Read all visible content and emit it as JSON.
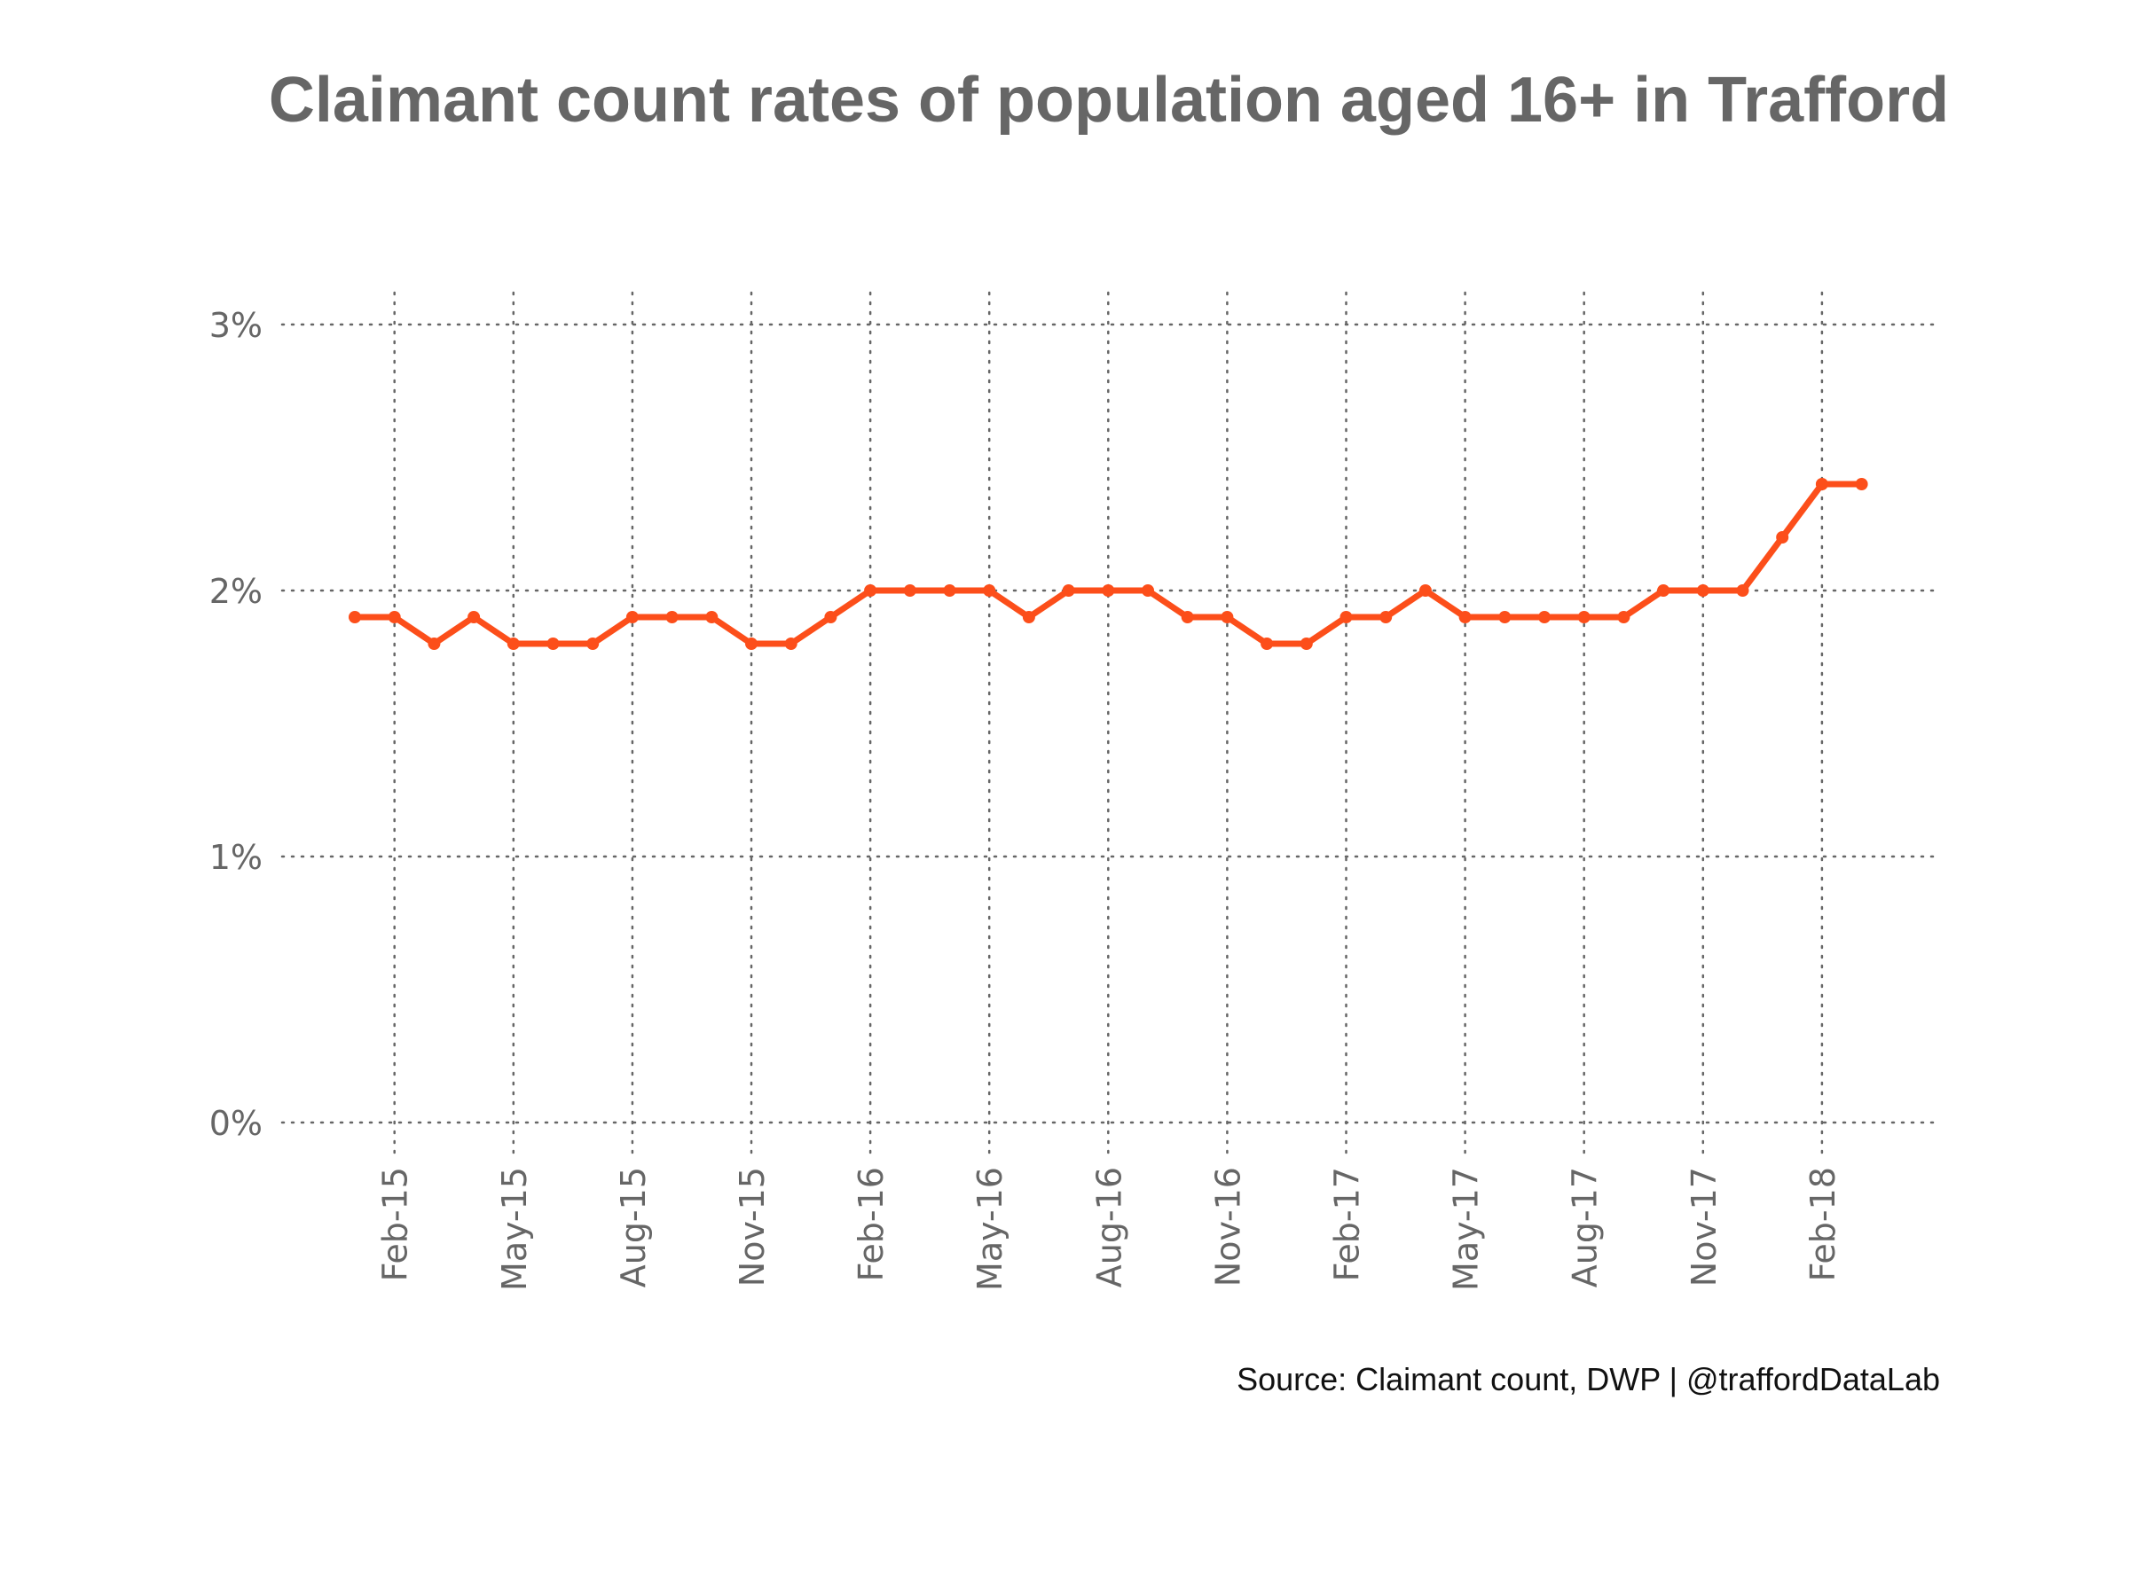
{
  "chart_data": {
    "type": "line",
    "title": "Claimant count rates of population aged 16+ in Trafford",
    "caption": "Source: Claimant count, DWP  |  @traffordDataLab",
    "xlabel": "",
    "ylabel": "",
    "y_axis": {
      "min": 0,
      "max": 3,
      "ticks": [
        0,
        1,
        2,
        3
      ],
      "tick_labels": [
        "0%",
        "1%",
        "2%",
        "3%"
      ]
    },
    "x_axis": {
      "start": "2015-01",
      "end": "2018-03",
      "ticks": [
        "2015-02",
        "2015-05",
        "2015-08",
        "2015-11",
        "2016-02",
        "2016-05",
        "2016-08",
        "2016-11",
        "2017-02",
        "2017-05",
        "2017-08",
        "2017-11",
        "2018-02"
      ],
      "tick_labels": [
        "Feb-15",
        "May-15",
        "Aug-15",
        "Nov-15",
        "Feb-16",
        "May-16",
        "Aug-16",
        "Nov-16",
        "Feb-17",
        "May-17",
        "Aug-17",
        "Nov-17",
        "Feb-18"
      ]
    },
    "grid": true,
    "legend": "none",
    "series": [
      {
        "color": "#fc4e1a",
        "x": [
          "2015-01",
          "2015-02",
          "2015-03",
          "2015-04",
          "2015-05",
          "2015-06",
          "2015-07",
          "2015-08",
          "2015-09",
          "2015-10",
          "2015-11",
          "2015-12",
          "2016-01",
          "2016-02",
          "2016-03",
          "2016-04",
          "2016-05",
          "2016-06",
          "2016-07",
          "2016-08",
          "2016-09",
          "2016-10",
          "2016-11",
          "2016-12",
          "2017-01",
          "2017-02",
          "2017-03",
          "2017-04",
          "2017-05",
          "2017-06",
          "2017-07",
          "2017-08",
          "2017-09",
          "2017-10",
          "2017-11",
          "2017-12",
          "2018-01",
          "2018-02",
          "2018-03"
        ],
        "values": [
          1.9,
          1.9,
          1.8,
          1.9,
          1.8,
          1.8,
          1.8,
          1.9,
          1.9,
          1.9,
          1.8,
          1.8,
          1.9,
          2.0,
          2.0,
          2.0,
          2.0,
          1.9,
          2.0,
          2.0,
          2.0,
          1.9,
          1.9,
          1.8,
          1.8,
          1.9,
          1.9,
          2.0,
          1.9,
          1.9,
          1.9,
          1.9,
          1.9,
          2.0,
          2.0,
          2.0,
          2.2,
          2.4,
          2.4
        ]
      }
    ]
  }
}
